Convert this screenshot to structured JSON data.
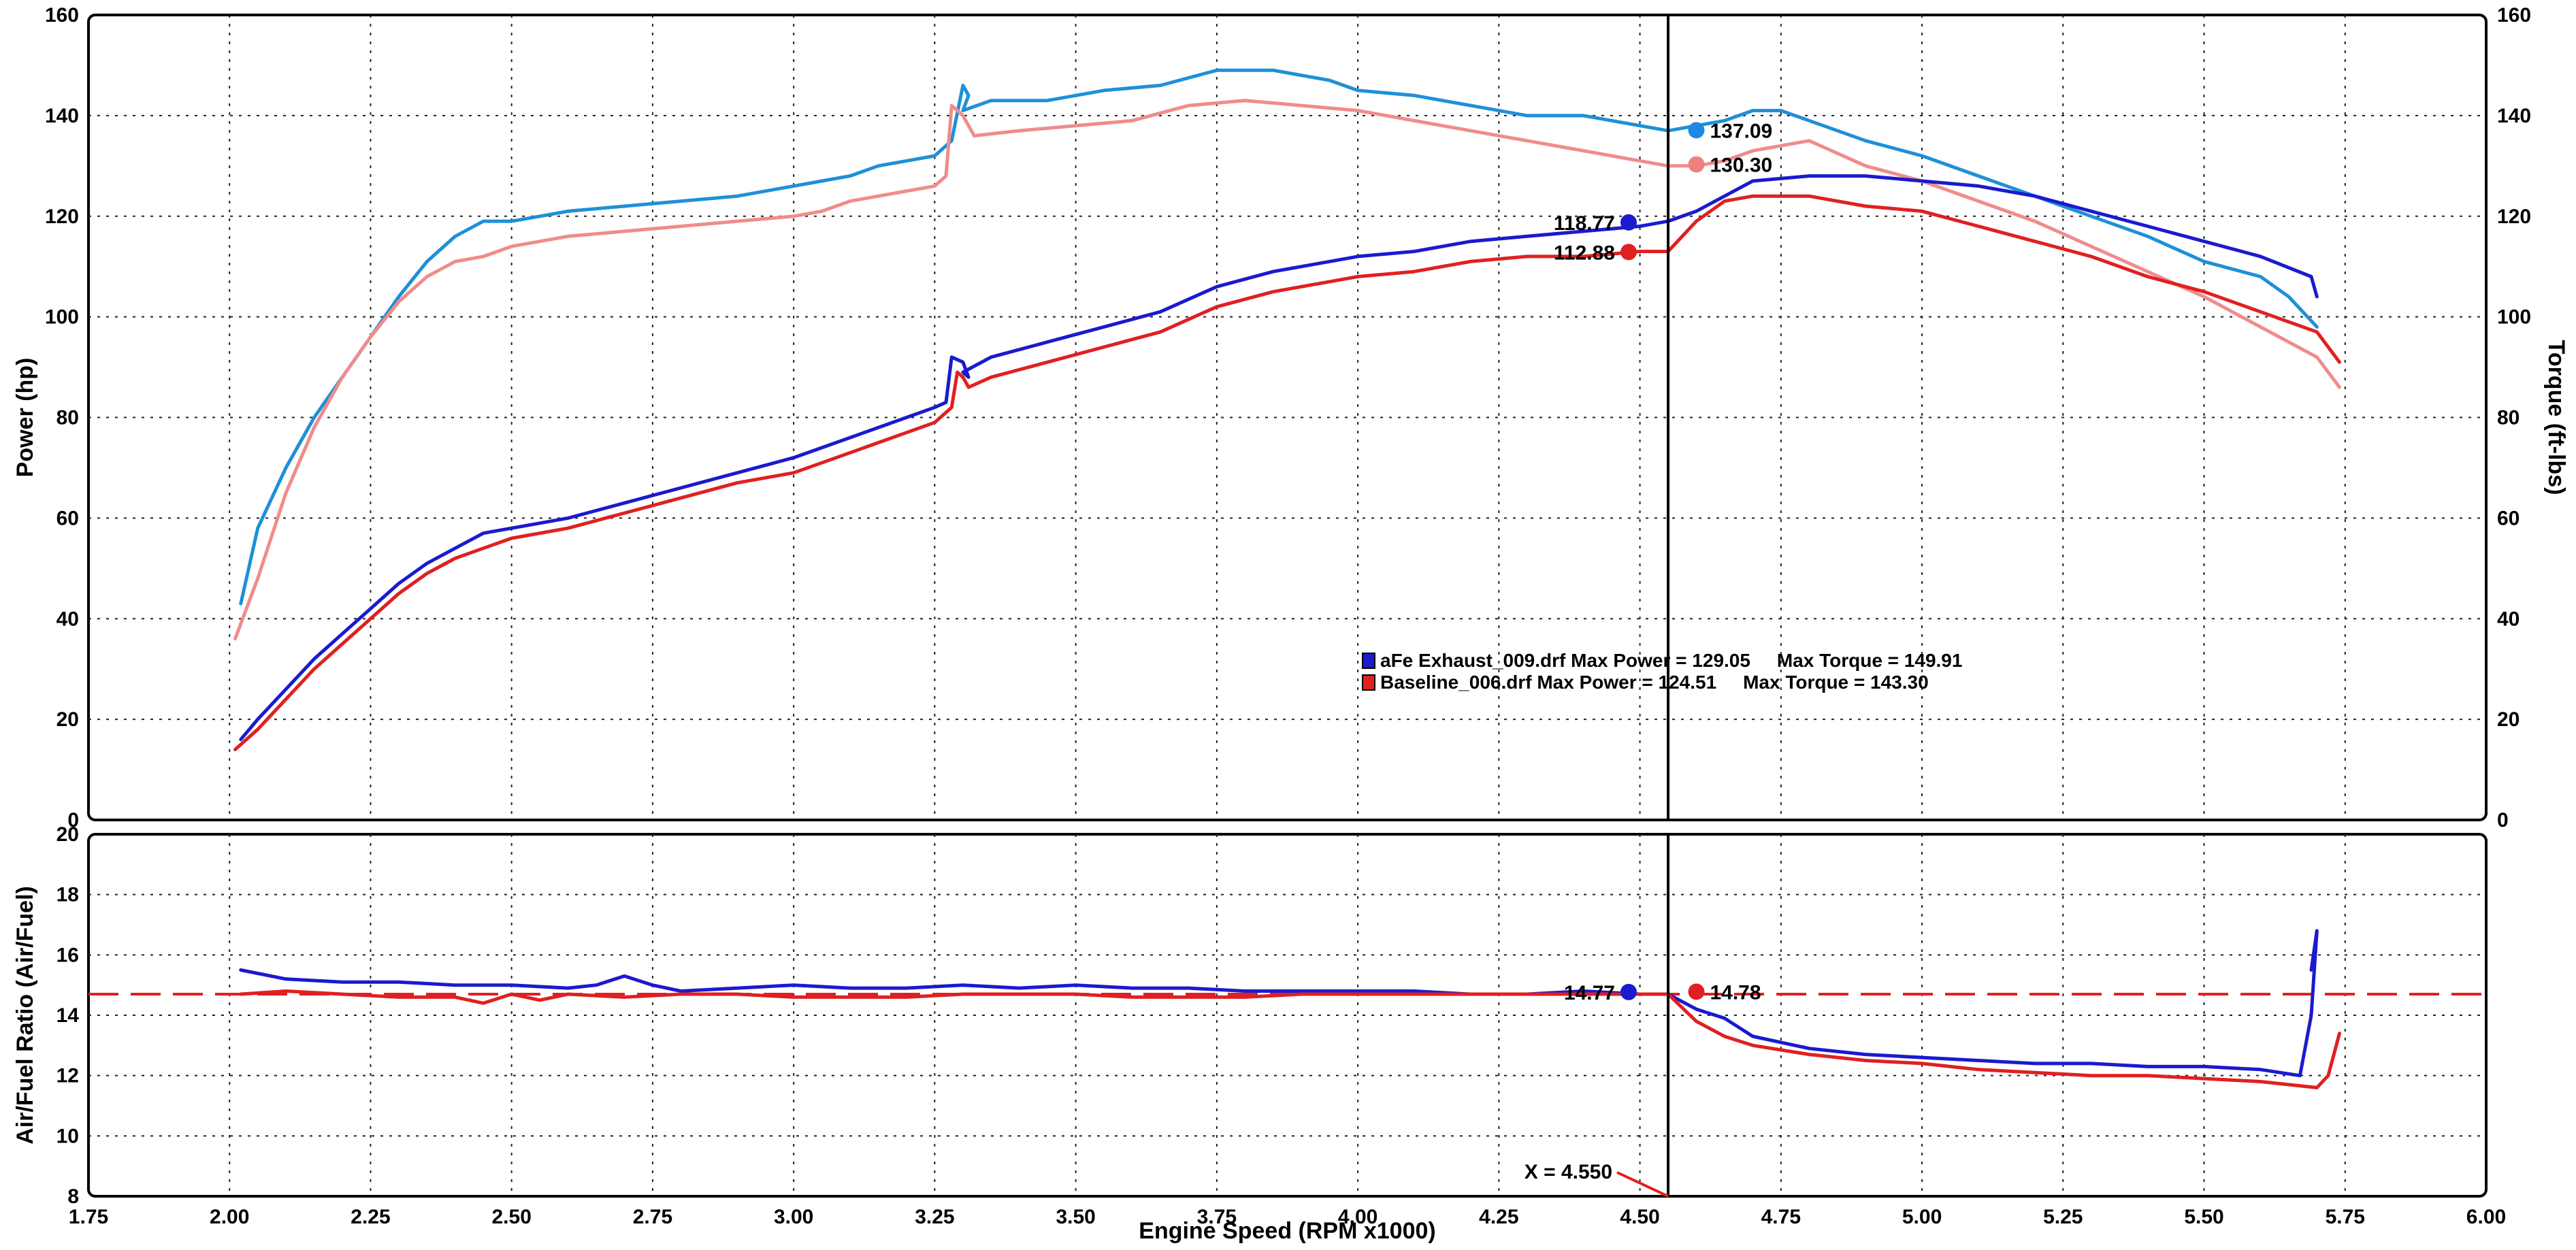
{
  "chart_data": [
    {
      "type": "line",
      "panel": "power-torque",
      "xlabel": "",
      "ylabel": "Power (hp)",
      "y2label": "Torque (ft-lbs)",
      "xlim": [
        1.75,
        6.0
      ],
      "ylim": [
        0,
        160
      ],
      "y2lim": [
        0,
        160
      ],
      "grid": true,
      "yticks": [
        "0",
        "20",
        "40",
        "60",
        "80",
        "100",
        "120",
        "140",
        "160"
      ],
      "y2ticks": [
        "0",
        "20",
        "40",
        "60",
        "80",
        "100",
        "120",
        "140",
        "160"
      ],
      "legend": {
        "placement": "center",
        "entries": [
          {
            "text": "aFe Exhaust_009.drf Max Power = 129.05     Max Torque = 149.91",
            "color": "#1a1ad0"
          },
          {
            "text": "Baseline_006.drf Max Power = 124.51     Max Torque = 143.30",
            "color": "#e02020"
          }
        ]
      },
      "cursor_x": 4.55,
      "markers": [
        {
          "label": "137.09",
          "x": 4.6,
          "y": 137.09,
          "color": "#1e88e5",
          "label_side": "right"
        },
        {
          "label": "130.30",
          "x": 4.6,
          "y": 130.3,
          "color": "#f08080",
          "label_side": "right"
        },
        {
          "label": "118.77",
          "x": 4.48,
          "y": 118.77,
          "color": "#1a1ad0",
          "label_side": "left"
        },
        {
          "label": "112.88",
          "x": 4.48,
          "y": 112.88,
          "color": "#e02020",
          "label_side": "left"
        }
      ],
      "series": [
        {
          "name": "aFe Exhaust_009.drf Torque",
          "axis": "right",
          "color": "#1e90d8",
          "x": [
            2.02,
            2.05,
            2.1,
            2.15,
            2.2,
            2.25,
            2.3,
            2.35,
            2.4,
            2.45,
            2.5,
            2.55,
            2.6,
            2.7,
            2.8,
            2.9,
            3.0,
            3.05,
            3.1,
            3.15,
            3.2,
            3.25,
            3.28,
            3.3,
            3.31,
            3.3,
            3.35,
            3.45,
            3.55,
            3.65,
            3.75,
            3.85,
            3.95,
            4.0,
            4.1,
            4.2,
            4.3,
            4.4,
            4.5,
            4.55,
            4.6,
            4.65,
            4.7,
            4.75,
            4.8,
            4.9,
            5.0,
            5.1,
            5.2,
            5.3,
            5.4,
            5.5,
            5.6,
            5.65,
            5.7
          ],
          "y": [
            43,
            58,
            70,
            80,
            88,
            96,
            104,
            111,
            116,
            119,
            119,
            120,
            121,
            122,
            123,
            124,
            126,
            127,
            128,
            130,
            131,
            132,
            135,
            146,
            144,
            141,
            143,
            143,
            145,
            146,
            149,
            149,
            147,
            145,
            144,
            142,
            140,
            140,
            138,
            137,
            138,
            139,
            141,
            141,
            139,
            135,
            132,
            128,
            124,
            120,
            116,
            111,
            108,
            104,
            98
          ]
        },
        {
          "name": "Baseline_006.drf Torque",
          "axis": "right",
          "color": "#f08c8c",
          "x": [
            2.01,
            2.05,
            2.1,
            2.15,
            2.2,
            2.25,
            2.3,
            2.35,
            2.4,
            2.45,
            2.5,
            2.6,
            2.7,
            2.8,
            2.9,
            3.0,
            3.05,
            3.1,
            3.15,
            3.2,
            3.25,
            3.27,
            3.28,
            3.3,
            3.31,
            3.32,
            3.4,
            3.5,
            3.6,
            3.7,
            3.8,
            3.9,
            4.0,
            4.1,
            4.2,
            4.3,
            4.4,
            4.5,
            4.55,
            4.6,
            4.65,
            4.7,
            4.8,
            4.9,
            5.0,
            5.1,
            5.2,
            5.3,
            5.4,
            5.5,
            5.6,
            5.7,
            5.74
          ],
          "y": [
            36,
            48,
            65,
            78,
            88,
            96,
            103,
            108,
            111,
            112,
            114,
            116,
            117,
            118,
            119,
            120,
            121,
            123,
            124,
            125,
            126,
            128,
            142,
            140,
            138,
            136,
            137,
            138,
            139,
            142,
            143,
            142,
            141,
            139,
            137,
            135,
            133,
            131,
            130,
            130,
            131,
            133,
            135,
            130,
            127,
            123,
            119,
            114,
            109,
            104,
            98,
            92,
            86
          ]
        },
        {
          "name": "aFe Exhaust_009.drf Power",
          "axis": "left",
          "color": "#1a1ad0",
          "x": [
            2.02,
            2.05,
            2.1,
            2.15,
            2.2,
            2.25,
            2.3,
            2.35,
            2.4,
            2.45,
            2.5,
            2.55,
            2.6,
            2.7,
            2.8,
            2.9,
            3.0,
            3.1,
            3.2,
            3.25,
            3.27,
            3.28,
            3.3,
            3.31,
            3.3,
            3.35,
            3.45,
            3.55,
            3.65,
            3.75,
            3.85,
            3.95,
            4.0,
            4.1,
            4.2,
            4.3,
            4.4,
            4.5,
            4.55,
            4.6,
            4.65,
            4.7,
            4.8,
            4.9,
            5.0,
            5.1,
            5.2,
            5.3,
            5.4,
            5.5,
            5.6,
            5.69,
            5.7
          ],
          "y": [
            16,
            20,
            26,
            32,
            37,
            42,
            47,
            51,
            54,
            57,
            58,
            59,
            60,
            63,
            66,
            69,
            72,
            76,
            80,
            82,
            83,
            92,
            91,
            88,
            89,
            92,
            95,
            98,
            101,
            106,
            109,
            111,
            112,
            113,
            115,
            116,
            117,
            118,
            119,
            121,
            124,
            127,
            128,
            128,
            127,
            126,
            124,
            121,
            118,
            115,
            112,
            108,
            104
          ]
        },
        {
          "name": "Baseline_006.drf Power",
          "axis": "left",
          "color": "#e02020",
          "x": [
            2.01,
            2.05,
            2.1,
            2.15,
            2.2,
            2.25,
            2.3,
            2.35,
            2.4,
            2.45,
            2.5,
            2.6,
            2.7,
            2.8,
            2.9,
            3.0,
            3.1,
            3.2,
            3.25,
            3.28,
            3.29,
            3.3,
            3.31,
            3.35,
            3.45,
            3.55,
            3.65,
            3.75,
            3.85,
            3.95,
            4.0,
            4.1,
            4.2,
            4.3,
            4.4,
            4.5,
            4.55,
            4.6,
            4.65,
            4.7,
            4.8,
            4.9,
            5.0,
            5.1,
            5.2,
            5.3,
            5.4,
            5.5,
            5.6,
            5.7,
            5.74
          ],
          "y": [
            14,
            18,
            24,
            30,
            35,
            40,
            45,
            49,
            52,
            54,
            56,
            58,
            61,
            64,
            67,
            69,
            73,
            77,
            79,
            82,
            89,
            88,
            86,
            88,
            91,
            94,
            97,
            102,
            105,
            107,
            108,
            109,
            111,
            112,
            112,
            113,
            113,
            119,
            123,
            124,
            124,
            122,
            121,
            118,
            115,
            112,
            108,
            105,
            101,
            97,
            91
          ]
        }
      ]
    },
    {
      "type": "line",
      "panel": "air-fuel",
      "xlabel": "Engine Speed (RPM x1000)",
      "ylabel": "Air/Fuel Ratio (Air/Fuel)",
      "xlim": [
        1.75,
        6.0
      ],
      "ylim": [
        8,
        20
      ],
      "grid": true,
      "xticks": [
        "1.75",
        "2.00",
        "2.25",
        "2.50",
        "2.75",
        "3.00",
        "3.25",
        "3.50",
        "3.75",
        "4.00",
        "4.25",
        "4.50",
        "4.75",
        "5.00",
        "5.25",
        "5.50",
        "5.75",
        "6.00"
      ],
      "yticks": [
        "8",
        "10",
        "12",
        "14",
        "16",
        "18",
        "20"
      ],
      "reference_line": {
        "y": 14.7,
        "color": "#e02020",
        "style": "dashed"
      },
      "cursor_x": 4.55,
      "cursor_label": "X = 4.550",
      "markers": [
        {
          "label": "14.77",
          "x": 4.48,
          "y": 14.77,
          "color": "#1a1ad0",
          "label_side": "left"
        },
        {
          "label": "14.78",
          "x": 4.6,
          "y": 14.78,
          "color": "#e02020",
          "label_side": "right"
        }
      ],
      "series": [
        {
          "name": "aFe Exhaust_009.drf AFR",
          "axis": "left",
          "color": "#1a1ad0",
          "x": [
            2.02,
            2.1,
            2.2,
            2.3,
            2.4,
            2.5,
            2.6,
            2.65,
            2.7,
            2.75,
            2.8,
            2.9,
            3.0,
            3.1,
            3.2,
            3.3,
            3.4,
            3.5,
            3.6,
            3.7,
            3.8,
            3.9,
            4.0,
            4.1,
            4.2,
            4.3,
            4.4,
            4.5,
            4.55,
            4.6,
            4.65,
            4.7,
            4.8,
            4.9,
            5.0,
            5.1,
            5.2,
            5.3,
            5.4,
            5.5,
            5.6,
            5.67,
            5.69,
            5.7,
            5.69
          ],
          "y": [
            15.5,
            15.2,
            15.1,
            15.1,
            15.0,
            15.0,
            14.9,
            15.0,
            15.3,
            15.0,
            14.8,
            14.9,
            15.0,
            14.9,
            14.9,
            15.0,
            14.9,
            15.0,
            14.9,
            14.9,
            14.8,
            14.8,
            14.8,
            14.8,
            14.7,
            14.7,
            14.8,
            14.7,
            14.7,
            14.2,
            13.9,
            13.3,
            12.9,
            12.7,
            12.6,
            12.5,
            12.4,
            12.4,
            12.3,
            12.3,
            12.2,
            12.0,
            14.0,
            16.8,
            15.5
          ]
        },
        {
          "name": "Baseline_006.drf AFR",
          "axis": "left",
          "color": "#e02020",
          "x": [
            2.02,
            2.1,
            2.2,
            2.3,
            2.4,
            2.45,
            2.5,
            2.55,
            2.6,
            2.7,
            2.8,
            2.9,
            3.0,
            3.1,
            3.2,
            3.3,
            3.4,
            3.5,
            3.6,
            3.7,
            3.8,
            3.9,
            4.0,
            4.1,
            4.2,
            4.3,
            4.4,
            4.5,
            4.55,
            4.6,
            4.65,
            4.7,
            4.8,
            4.9,
            5.0,
            5.1,
            5.2,
            5.3,
            5.4,
            5.5,
            5.6,
            5.7,
            5.72,
            5.74
          ],
          "y": [
            14.7,
            14.8,
            14.7,
            14.6,
            14.6,
            14.4,
            14.7,
            14.5,
            14.7,
            14.6,
            14.7,
            14.7,
            14.6,
            14.6,
            14.6,
            14.7,
            14.7,
            14.7,
            14.6,
            14.6,
            14.6,
            14.7,
            14.7,
            14.7,
            14.7,
            14.7,
            14.7,
            14.7,
            14.7,
            13.8,
            13.3,
            13.0,
            12.7,
            12.5,
            12.4,
            12.2,
            12.1,
            12.0,
            12.0,
            11.9,
            11.8,
            11.6,
            12.0,
            13.4
          ]
        }
      ]
    }
  ]
}
